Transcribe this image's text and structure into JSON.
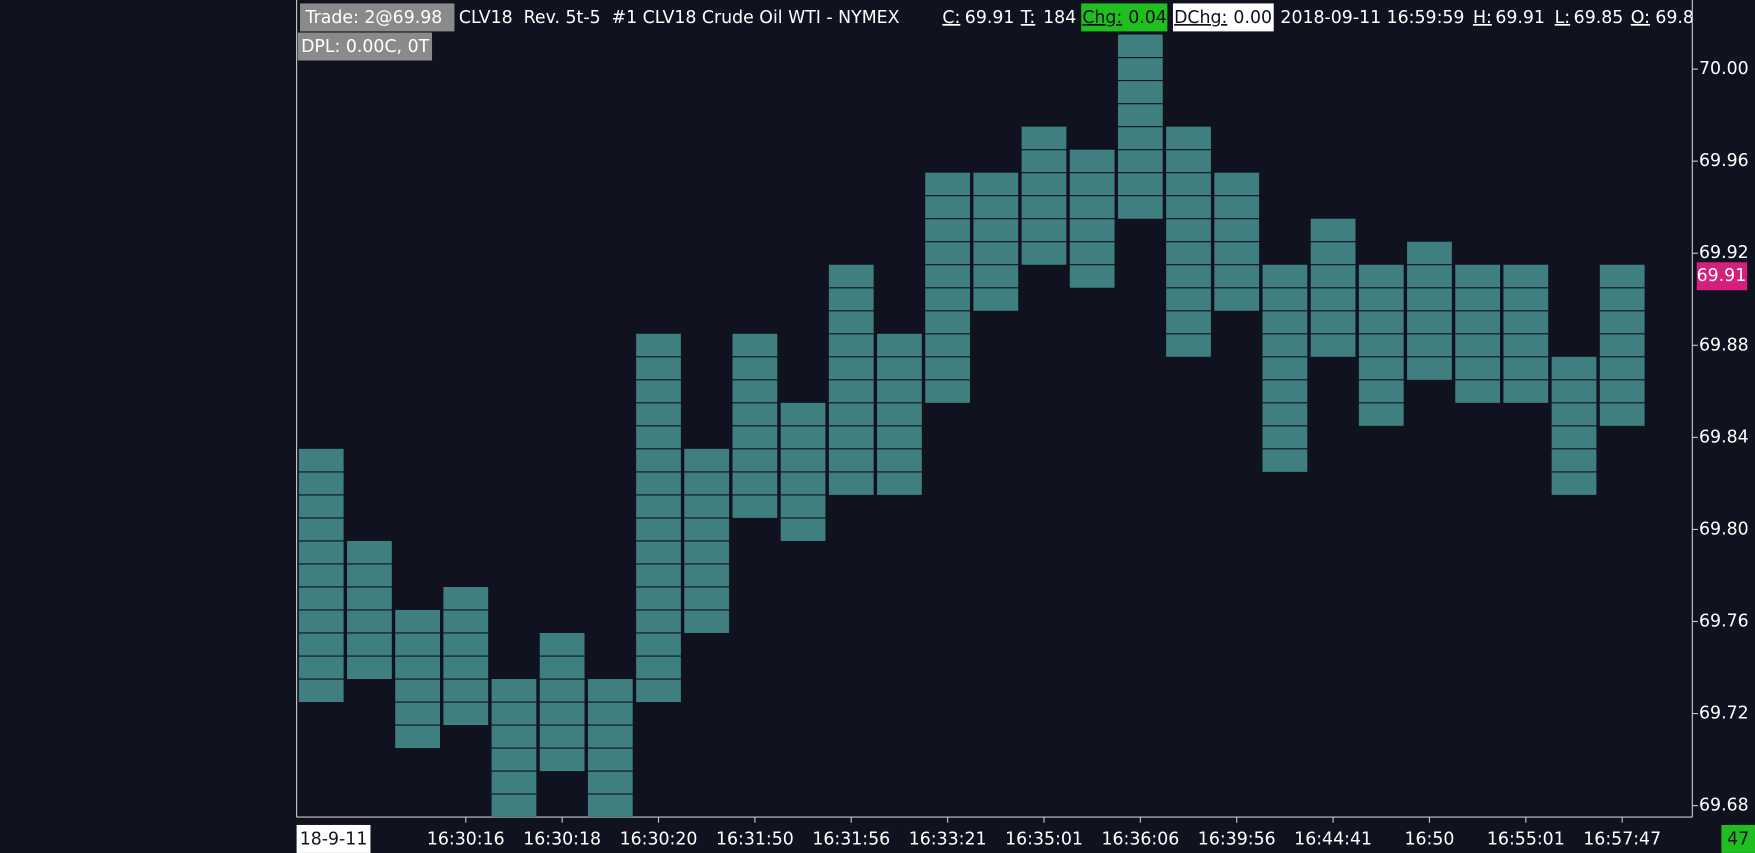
{
  "header": {
    "trade": "Trade: 2@69.98",
    "symbol": "CLV18  Rev. 5t-5  #1 CLV18 Crude Oil WTI - NYMEX",
    "fields": [
      {
        "label": "C:",
        "value": "69.91"
      },
      {
        "label": "T:",
        "value": "184"
      },
      {
        "label": "Chg:",
        "value": "0.04"
      },
      {
        "label": "DChg:",
        "value": "0.00"
      }
    ],
    "datetime": "2018-09-11 16:59:59",
    "fields2": [
      {
        "label": "H:",
        "value": "69.91"
      },
      {
        "label": "L:",
        "value": "69.85"
      },
      {
        "label": "O:",
        "value": "69.8"
      }
    ],
    "dpl": "DPL: 0.00C, 0T",
    "counter": "47"
  },
  "chart_data": {
    "type": "range",
    "color": "#3f7f7f",
    "box_size": 0.01,
    "categories": [
      "18-9-11",
      null,
      null,
      "16:30:16",
      null,
      "16:30:18",
      null,
      "16:30:20",
      null,
      "16:31:50",
      null,
      "16:31:56",
      null,
      "16:33:21",
      null,
      "16:35:01",
      null,
      "16:36:06",
      null,
      "16:39:56",
      null,
      "16:44:41",
      null,
      "16:50",
      null,
      "16:55:01",
      null,
      "16:57:47"
    ],
    "low": [
      69.73,
      69.74,
      69.71,
      69.72,
      69.68,
      69.7,
      69.68,
      69.73,
      69.76,
      69.81,
      69.8,
      69.82,
      69.82,
      69.86,
      69.9,
      69.92,
      69.91,
      69.94,
      69.88,
      69.9,
      69.83,
      69.88,
      69.85,
      69.87,
      69.86,
      69.86,
      69.82,
      69.85
    ],
    "high": [
      69.83,
      69.79,
      69.76,
      69.77,
      69.73,
      69.75,
      69.73,
      69.88,
      69.83,
      69.88,
      69.85,
      69.91,
      69.88,
      69.95,
      69.95,
      69.97,
      69.96,
      70.01,
      69.97,
      69.95,
      69.91,
      69.93,
      69.91,
      69.92,
      69.91,
      69.91,
      69.87,
      69.91
    ],
    "last_price": 69.91,
    "ylim": [
      69.675,
      70.03
    ],
    "yticks": [
      69.68,
      69.72,
      69.76,
      {
        "value": 69.8,
        "label": "69.80"
      },
      69.84,
      69.88,
      69.92,
      69.96,
      {
        "value": 70,
        "label": "70.00"
      }
    ]
  }
}
